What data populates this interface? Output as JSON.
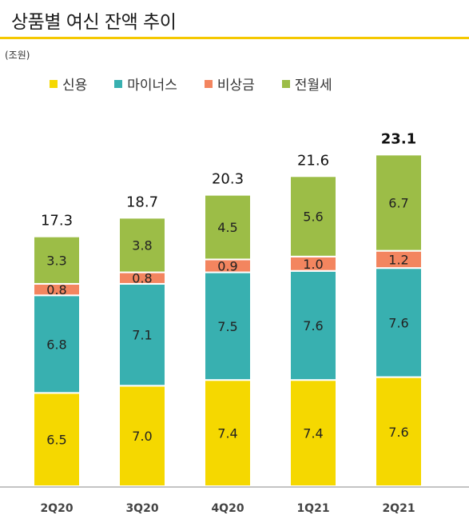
{
  "title": "상품별 여신 잔액 추이",
  "unit": "(조원)",
  "colors": {
    "accent": "#f5c800",
    "신용": "#f5d800",
    "마이너스": "#38b0b0",
    "비상금": "#f3855f",
    "전월세": "#9cbd47"
  },
  "chart_data": {
    "type": "bar",
    "stacked": true,
    "categories": [
      "2Q20",
      "3Q20",
      "4Q20",
      "1Q21",
      "2Q21"
    ],
    "series": [
      {
        "name": "신용",
        "values": [
          6.5,
          7.0,
          7.4,
          7.4,
          7.6
        ],
        "labels": [
          "6.5",
          "7.0",
          "7.4",
          "7.4",
          "7.6"
        ]
      },
      {
        "name": "마이너스",
        "values": [
          6.8,
          7.1,
          7.5,
          7.6,
          7.6
        ],
        "labels": [
          "6.8",
          "7.1",
          "7.5",
          "7.6",
          "7.6"
        ]
      },
      {
        "name": "비상금",
        "values": [
          0.8,
          0.8,
          0.9,
          1.0,
          1.2
        ],
        "labels": [
          "0.8",
          "0.8",
          "0.9",
          "1.0",
          "1.2"
        ]
      },
      {
        "name": "전월세",
        "values": [
          3.3,
          3.8,
          4.5,
          5.6,
          6.7
        ],
        "labels": [
          "3.3",
          "3.8",
          "4.5",
          "5.6",
          "6.7"
        ]
      }
    ],
    "totals": [
      17.3,
      18.7,
      20.3,
      21.6,
      23.1
    ],
    "total_labels": [
      "17.3",
      "18.7",
      "20.3",
      "21.6",
      "23.1"
    ],
    "highlight_last_total": true,
    "legend_position": "top",
    "grid": false
  }
}
